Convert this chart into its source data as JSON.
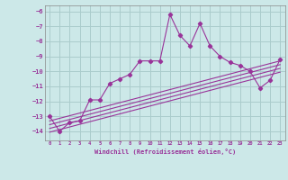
{
  "xlabel": "Windchill (Refroidissement éolien,°C)",
  "bg_color": "#cce8e8",
  "grid_color": "#aacccc",
  "line_color": "#993399",
  "xlim": [
    -0.5,
    23.5
  ],
  "ylim": [
    -14.6,
    -5.6
  ],
  "yticks": [
    -14,
    -13,
    -12,
    -11,
    -10,
    -9,
    -8,
    -7,
    -6
  ],
  "xticks": [
    0,
    1,
    2,
    3,
    4,
    5,
    6,
    7,
    8,
    9,
    10,
    11,
    12,
    13,
    14,
    15,
    16,
    17,
    18,
    19,
    20,
    21,
    22,
    23
  ],
  "main_x": [
    0,
    1,
    2,
    3,
    4,
    5,
    6,
    7,
    8,
    9,
    10,
    11,
    12,
    13,
    14,
    15,
    16,
    17,
    18,
    19,
    20,
    21,
    22,
    23
  ],
  "main_y": [
    -13.0,
    -14.0,
    -13.4,
    -13.3,
    -11.9,
    -11.9,
    -10.8,
    -10.5,
    -10.2,
    -9.3,
    -9.3,
    -9.3,
    -6.2,
    -7.6,
    -8.3,
    -6.8,
    -8.3,
    -9.0,
    -9.4,
    -9.6,
    -10.0,
    -11.1,
    -10.6,
    -9.2
  ],
  "trends": [
    {
      "x": [
        0,
        23
      ],
      "y": [
        -13.3,
        -9.3
      ]
    },
    {
      "x": [
        0,
        23
      ],
      "y": [
        -13.55,
        -9.55
      ]
    },
    {
      "x": [
        0,
        23
      ],
      "y": [
        -13.8,
        -9.8
      ]
    },
    {
      "x": [
        0,
        23
      ],
      "y": [
        -14.05,
        -10.05
      ]
    }
  ]
}
